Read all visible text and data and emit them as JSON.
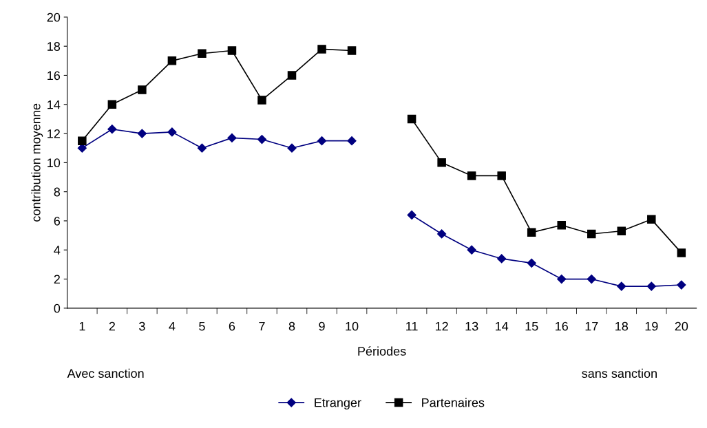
{
  "chart_data": {
    "type": "line",
    "xlabel": "Périodes",
    "ylabel": "contribution moyenne",
    "categories": [
      "1",
      "2",
      "3",
      "4",
      "5",
      "6",
      "7",
      "8",
      "9",
      "10",
      null,
      "11",
      "12",
      "13",
      "14",
      "15",
      "16",
      "17",
      "18",
      "19",
      "20"
    ],
    "series": [
      {
        "name": "Etranger",
        "color": "#000080",
        "marker": "diamond",
        "values": [
          11,
          12.3,
          12,
          12.1,
          11,
          11.7,
          11.6,
          11,
          11.5,
          11.5,
          null,
          6.4,
          5.1,
          4,
          3.4,
          3.1,
          2,
          2,
          1.5,
          1.5,
          1.6
        ]
      },
      {
        "name": "Partenaires",
        "color": "#000000",
        "marker": "square",
        "values": [
          11.5,
          14,
          15,
          17,
          17.5,
          17.7,
          14.3,
          16,
          17.8,
          17.7,
          null,
          13,
          10,
          9.1,
          9.1,
          5.2,
          5.7,
          5.1,
          5.3,
          6.1,
          3.8
        ]
      }
    ],
    "ylim": [
      0,
      20
    ],
    "yticks": [
      0,
      2,
      4,
      6,
      8,
      10,
      12,
      14,
      16,
      18,
      20
    ],
    "grid": false,
    "legend": "bottom",
    "line_style": "solid",
    "annotations": [
      "Avec sanction",
      "sans sanction"
    ]
  }
}
